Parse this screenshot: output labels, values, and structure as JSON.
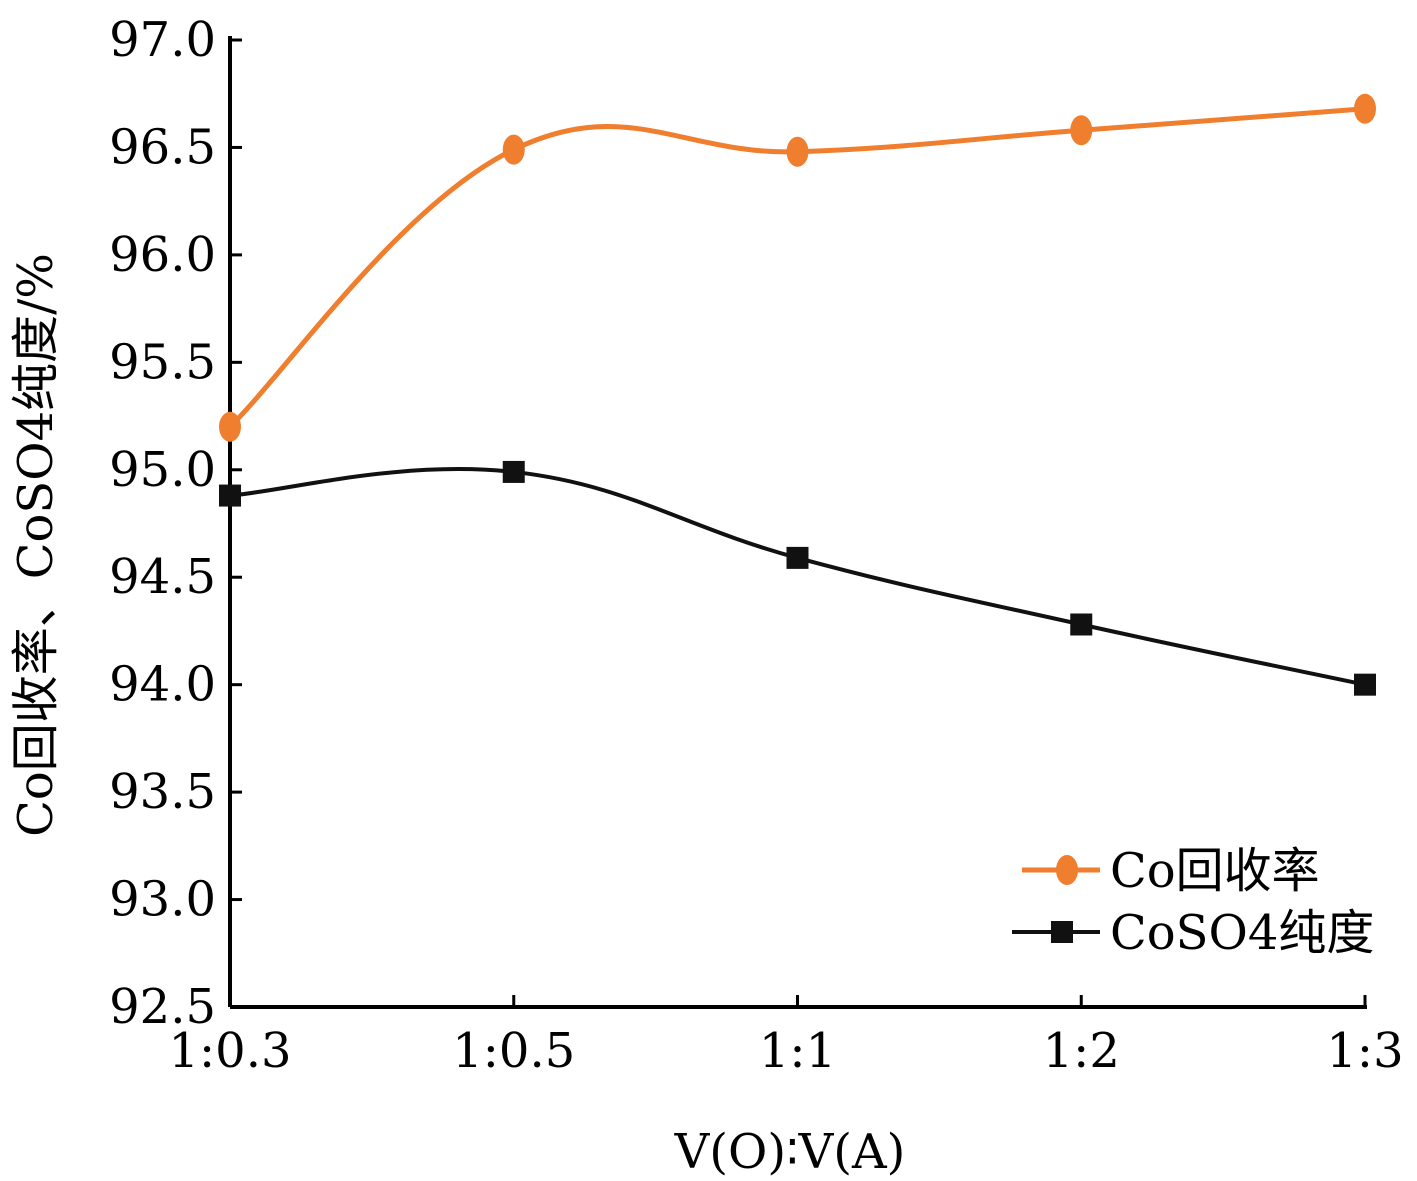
{
  "chart_data": {
    "type": "line",
    "categories": [
      "1:0.3",
      "1:0.5",
      "1:1",
      "1:2",
      "1:3"
    ],
    "series": [
      {
        "name": "Co回收率",
        "values": [
          95.2,
          96.49,
          96.48,
          96.58,
          96.68
        ],
        "color": "#ef7e2e",
        "marker": "circle"
      },
      {
        "name": "CoSO4纯度",
        "values": [
          94.88,
          94.99,
          94.59,
          94.28,
          94.0
        ],
        "color": "#111111",
        "marker": "square"
      }
    ],
    "ylim": [
      92.5,
      97.0
    ],
    "yticks": [
      "92.5",
      "93.0",
      "93.5",
      "94.0",
      "94.5",
      "95.0",
      "95.5",
      "96.0",
      "96.5",
      "97.0"
    ],
    "xlabel": "V(O)∶V(A)",
    "ylabel": "Co回收率、CoSO4纯度/%",
    "legend_position": "bottom-right",
    "grid": false
  }
}
